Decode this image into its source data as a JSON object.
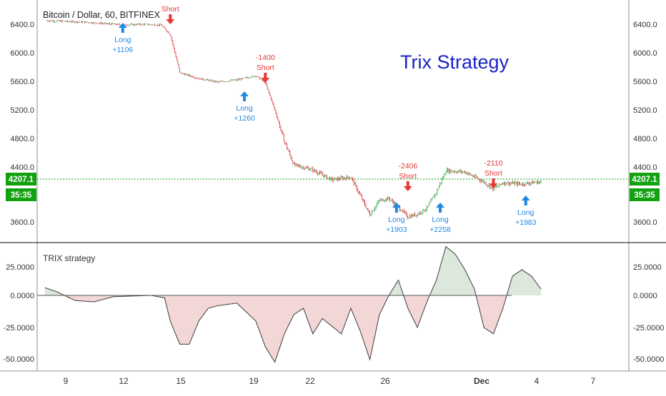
{
  "header": {
    "symbol_title": "Bitcoin / Dollar, 60, BITFINEX",
    "strategy_title": "Trix Strategy"
  },
  "price_panel": {
    "y_ticks": [
      "6400.0",
      "6000.0",
      "5600.0",
      "5200.0",
      "4800.0",
      "4400.0",
      "3600.0"
    ],
    "current_price": "4207.1",
    "countdown": "35:35"
  },
  "indicator_panel": {
    "title": "TRIX strategy",
    "y_ticks": [
      "25.0000",
      "0.0000",
      "-25.0000",
      "-50.0000"
    ]
  },
  "x_axis": {
    "labels": [
      "9",
      "12",
      "15",
      "19",
      "22",
      "26",
      "Dec",
      "4",
      "7"
    ]
  },
  "trades": [
    {
      "side": "short",
      "lines": [
        "Short"
      ]
    },
    {
      "side": "long",
      "lines": [
        "Long",
        "+1106"
      ]
    },
    {
      "side": "short",
      "lines": [
        "-1400",
        "Short"
      ]
    },
    {
      "side": "long",
      "lines": [
        "Long",
        "+1260"
      ]
    },
    {
      "side": "short",
      "lines": [
        "-2406",
        "Short"
      ]
    },
    {
      "side": "long",
      "lines": [
        "Long",
        "+1903"
      ]
    },
    {
      "side": "long",
      "lines": [
        "Long",
        "+2258"
      ]
    },
    {
      "side": "short",
      "lines": [
        "-2110",
        "Short"
      ]
    },
    {
      "side": "long",
      "lines": [
        "Long",
        "+1983"
      ]
    }
  ],
  "colors": {
    "long": "#1e88e5",
    "short": "#e53935",
    "bull_candle": "#26a641",
    "bear_candle": "#d6262b",
    "price_tag": "#12a10f",
    "title": "#1a22c8",
    "trix_positive_fill": "#dbe8db",
    "trix_negative_fill": "#f3d6d6"
  },
  "chart_data": [
    {
      "type": "line",
      "title": "Bitcoin / Dollar, 60, BITFINEX",
      "xlabel": "",
      "ylabel": "",
      "x_tick_labels": [
        "9",
        "12",
        "15",
        "19",
        "22",
        "26",
        "Dec",
        "4",
        "7"
      ],
      "ylim": [
        3400,
        6700
      ],
      "x": [
        8,
        9,
        10,
        11,
        12,
        13,
        14,
        14.5,
        15,
        16,
        17,
        18,
        19,
        19.5,
        20,
        20.5,
        21,
        22,
        23,
        24,
        25,
        25.5,
        26,
        26.5,
        27,
        27.5,
        28,
        28.5,
        29,
        30,
        31,
        31.5,
        32,
        33,
        33.5,
        34
      ],
      "series": [
        {
          "values": [
            6470,
            6460,
            6450,
            6430,
            6410,
            6420,
            6410,
            6280,
            5740,
            5660,
            5610,
            5640,
            5700,
            5600,
            5220,
            4780,
            4450,
            4380,
            4240,
            4280,
            3750,
            3950,
            3980,
            3860,
            3720,
            3760,
            3840,
            4070,
            4370,
            4350,
            4210,
            4110,
            4200,
            4180,
            4200,
            4210
          ]
        }
      ],
      "trades": [
        {
          "side": "short",
          "x": 14.5,
          "price": 6420
        },
        {
          "side": "long",
          "x": 12,
          "price": 6440
        },
        {
          "side": "short",
          "x": 19.5,
          "price": 5600
        },
        {
          "side": "long",
          "x": 18.4,
          "price": 5480
        },
        {
          "side": "short",
          "x": 27,
          "price": 4080
        },
        {
          "side": "long",
          "x": 26.4,
          "price": 3920
        },
        {
          "side": "long",
          "x": 28.7,
          "price": 3920
        },
        {
          "side": "short",
          "x": 31.5,
          "price": 4120
        },
        {
          "side": "long",
          "x": 33.2,
          "price": 4020
        }
      ]
    },
    {
      "type": "area",
      "title": "TRIX strategy",
      "xlabel": "",
      "ylabel": "",
      "ylim": [
        -55,
        45
      ],
      "x": [
        7.9,
        8.5,
        9.5,
        10.5,
        11.5,
        12.5,
        13.5,
        14.2,
        14.5,
        15,
        15.5,
        16,
        16.5,
        17,
        18,
        19,
        19.5,
        20,
        20.5,
        21,
        21.5,
        22,
        22.5,
        23,
        23.5,
        24,
        24.5,
        25,
        25.5,
        26,
        26.5,
        27,
        27.5,
        28,
        28.5,
        29,
        29.5,
        30,
        30.5,
        31,
        31.5,
        32,
        32.5,
        33,
        33.5,
        34
      ],
      "series": [
        {
          "name": "TRIX strategy",
          "values": [
            6,
            3,
            -4,
            -5,
            -1,
            -0.5,
            0,
            -2,
            -20,
            -38,
            -38,
            -20,
            -10,
            -8,
            -6,
            -20,
            -40,
            -52,
            -30,
            -15,
            -10,
            -30,
            -18,
            -24,
            -30,
            -10,
            -28,
            -50,
            -15,
            0,
            12,
            -10,
            -25,
            -5,
            12,
            38,
            32,
            20,
            5,
            -25,
            -30,
            -10,
            15,
            20,
            15,
            5
          ]
        }
      ]
    }
  ]
}
